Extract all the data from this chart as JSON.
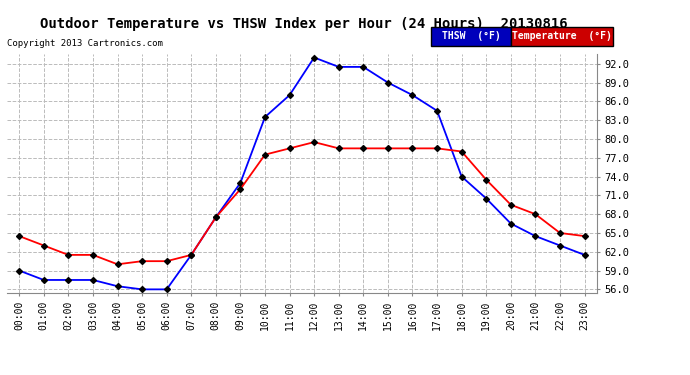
{
  "title": "Outdoor Temperature vs THSW Index per Hour (24 Hours)  20130816",
  "copyright": "Copyright 2013 Cartronics.com",
  "hours": [
    "00:00",
    "01:00",
    "02:00",
    "03:00",
    "04:00",
    "05:00",
    "06:00",
    "07:00",
    "08:00",
    "09:00",
    "10:00",
    "11:00",
    "12:00",
    "13:00",
    "14:00",
    "15:00",
    "16:00",
    "17:00",
    "18:00",
    "19:00",
    "20:00",
    "21:00",
    "22:00",
    "23:00"
  ],
  "thsw": [
    59.0,
    57.5,
    57.5,
    57.5,
    56.5,
    56.0,
    56.0,
    61.5,
    67.5,
    73.0,
    83.5,
    87.0,
    93.0,
    91.5,
    91.5,
    89.0,
    87.0,
    84.5,
    74.0,
    70.5,
    66.5,
    64.5,
    63.0,
    61.5
  ],
  "temperature": [
    64.5,
    63.0,
    61.5,
    61.5,
    60.0,
    60.5,
    60.5,
    61.5,
    67.5,
    72.0,
    77.5,
    78.5,
    79.5,
    78.5,
    78.5,
    78.5,
    78.5,
    78.5,
    78.0,
    73.5,
    69.5,
    68.0,
    65.0,
    64.5
  ],
  "thsw_color": "#0000ff",
  "temp_color": "#ff0000",
  "background_color": "#ffffff",
  "grid_color": "#bbbbbb",
  "ylim": [
    55.5,
    93.5
  ],
  "yticks": [
    56.0,
    59.0,
    62.0,
    65.0,
    68.0,
    71.0,
    74.0,
    77.0,
    80.0,
    83.0,
    86.0,
    89.0,
    92.0
  ],
  "legend_thsw_bg": "#0000bb",
  "legend_temp_bg": "#cc0000",
  "legend_thsw_text": "THSW  (°F)",
  "legend_temp_text": "Temperature  (°F)"
}
